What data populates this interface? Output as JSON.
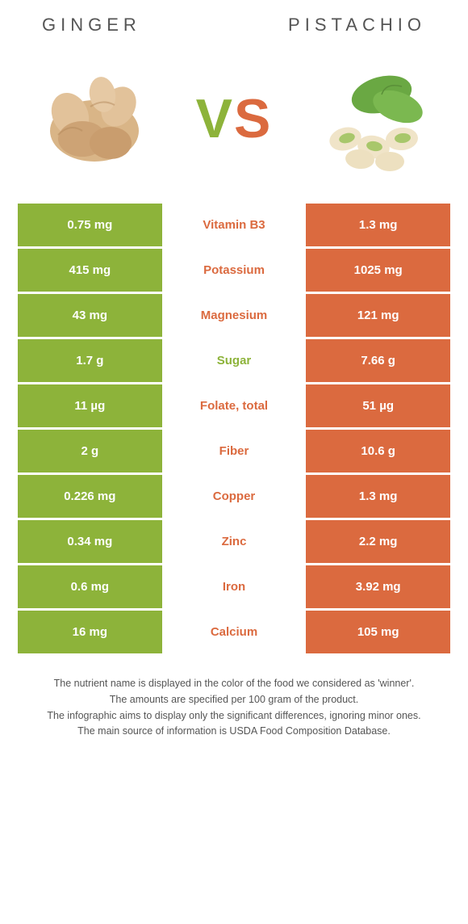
{
  "colors": {
    "green": "#8db33a",
    "orange": "#db6a3f",
    "text_gray": "#555555",
    "background": "#ffffff"
  },
  "header": {
    "left_title": "GINGER",
    "right_title": "PISTACHIO",
    "vs_left": "V",
    "vs_right": "S"
  },
  "rows": [
    {
      "left": "0.75 mg",
      "label": "Vitamin B3",
      "right": "1.3 mg",
      "winner": "orange"
    },
    {
      "left": "415 mg",
      "label": "Potassium",
      "right": "1025 mg",
      "winner": "orange"
    },
    {
      "left": "43 mg",
      "label": "Magnesium",
      "right": "121 mg",
      "winner": "orange"
    },
    {
      "left": "1.7 g",
      "label": "Sugar",
      "right": "7.66 g",
      "winner": "green"
    },
    {
      "left": "11 µg",
      "label": "Folate, total",
      "right": "51 µg",
      "winner": "orange"
    },
    {
      "left": "2 g",
      "label": "Fiber",
      "right": "10.6 g",
      "winner": "orange"
    },
    {
      "left": "0.226 mg",
      "label": "Copper",
      "right": "1.3 mg",
      "winner": "orange"
    },
    {
      "left": "0.34 mg",
      "label": "Zinc",
      "right": "2.2 mg",
      "winner": "orange"
    },
    {
      "left": "0.6 mg",
      "label": "Iron",
      "right": "3.92 mg",
      "winner": "orange"
    },
    {
      "left": "16 mg",
      "label": "Calcium",
      "right": "105 mg",
      "winner": "orange"
    }
  ],
  "footnotes": [
    "The nutrient name is displayed in the color of the food we considered as 'winner'.",
    "The amounts are specified per 100 gram of the product.",
    "The infographic aims to display only the significant differences, ignoring minor ones.",
    "The main source of information is USDA Food Composition Database."
  ]
}
